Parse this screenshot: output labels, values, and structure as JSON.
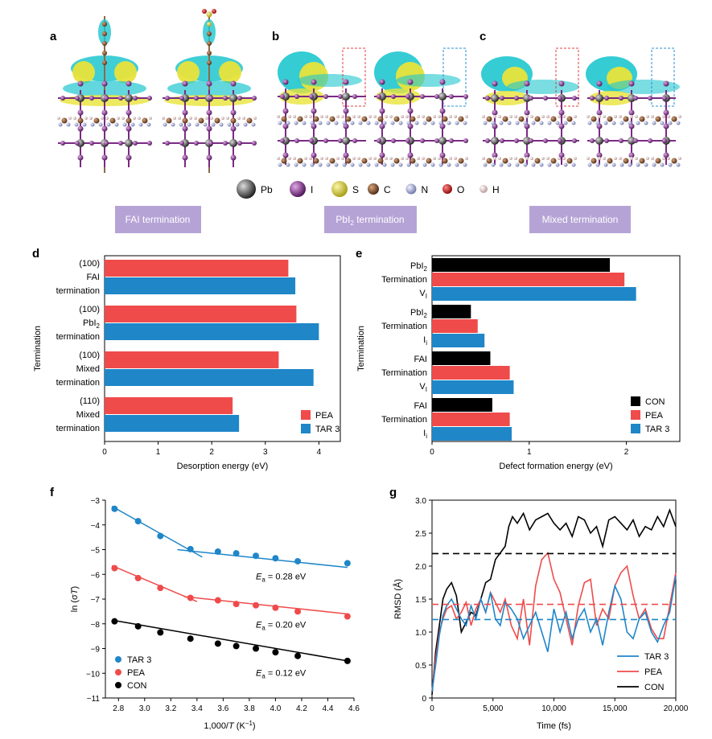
{
  "colors": {
    "pea": "#ef4b4b",
    "tar3": "#1f86c8",
    "con": "#000000",
    "terminationBox": "#b6a3d6",
    "Pb": "#555555",
    "I": "#7b2a84",
    "S": "#dbd23a",
    "C": "#7a4a2a",
    "N": "#9aa0c8",
    "O": "#d01010",
    "H": "#d8b8b8"
  },
  "panels": {
    "a": "a",
    "b": "b",
    "c": "c",
    "d": "d",
    "e": "e",
    "f": "f",
    "g": "g"
  },
  "legend_atoms": [
    {
      "symbol": "Pb",
      "color": "#555555"
    },
    {
      "symbol": "I",
      "color": "#7b2a84"
    },
    {
      "symbol": "S",
      "color": "#dbd23a"
    },
    {
      "symbol": "C",
      "color": "#7a4a2a"
    },
    {
      "symbol": "N",
      "color": "#9aa0c8"
    },
    {
      "symbol": "O",
      "color": "#d01010"
    },
    {
      "symbol": "H",
      "color": "#d8b8b8"
    }
  ],
  "termination_labels": {
    "a": "FAI termination",
    "b_pre": "PbI",
    "b_sub": "2",
    "b_post": " termination",
    "c": "Mixed termination"
  },
  "chart_data": [
    {
      "panel": "d",
      "type": "bar",
      "orientation": "horizontal",
      "ylabel": "Termination",
      "xlabel": "Desorption energy (eV)",
      "xlim": [
        0,
        4.4
      ],
      "xticks": [
        "0",
        "1",
        "2",
        "3",
        "4"
      ],
      "groups": [
        {
          "lines": [
            "(100)",
            "FAI",
            "termination"
          ]
        },
        {
          "lines": [
            "(100)",
            "PbI|2",
            "termination"
          ]
        },
        {
          "lines": [
            "(100)",
            "Mixed",
            "termination"
          ]
        },
        {
          "lines": [
            "(110)",
            "Mixed",
            "termination"
          ]
        }
      ],
      "series": [
        {
          "name": "PEA",
          "color": "#ef4b4b",
          "values": [
            3.43,
            3.58,
            3.25,
            2.39
          ]
        },
        {
          "name": "TAR 3",
          "color": "#1f86c8",
          "values": [
            3.56,
            4.0,
            3.9,
            2.51
          ]
        }
      ]
    },
    {
      "panel": "e",
      "type": "bar",
      "orientation": "horizontal",
      "ylabel": "Termination",
      "xlabel": "Defect formation energy (eV)",
      "xlim": [
        0,
        2.55
      ],
      "xticks": [
        "0",
        "1",
        "2"
      ],
      "groups": [
        {
          "lines": [
            "PbI|2",
            "Termination",
            "V|I"
          ]
        },
        {
          "lines": [
            "PbI|2",
            "Termination",
            "I|i"
          ]
        },
        {
          "lines": [
            "FAI",
            "Termination",
            "V|I"
          ]
        },
        {
          "lines": [
            "FAI",
            "Termination",
            "I|i"
          ]
        }
      ],
      "series": [
        {
          "name": "CON",
          "color": "#000000",
          "values": [
            1.83,
            0.4,
            0.6,
            0.62
          ]
        },
        {
          "name": "PEA",
          "color": "#ef4b4b",
          "values": [
            1.98,
            0.47,
            0.8,
            0.8
          ]
        },
        {
          "name": "TAR 3",
          "color": "#1f86c8",
          "values": [
            2.1,
            0.54,
            0.84,
            0.82
          ]
        }
      ]
    },
    {
      "panel": "f",
      "type": "scatter",
      "xlabel_pre": "1,000/",
      "xlabel_T": "T",
      "xlabel_post": " (K",
      "xlabel_sup": "−1",
      "xlabel_end": ")",
      "ylabel_pre": "ln (σ",
      "ylabel_T": "T",
      "ylabel_post": ")",
      "xlim": [
        2.7,
        4.6
      ],
      "ylim": [
        -11,
        -3
      ],
      "xticks": [
        "2.8",
        "3.0",
        "3.2",
        "3.4",
        "3.6",
        "3.8",
        "4.0",
        "4.2",
        "4.4",
        "4.6"
      ],
      "yticks": [
        "−3",
        "−4",
        "−5",
        "−6",
        "−7",
        "−8",
        "−9",
        "−10",
        "−11"
      ],
      "x": [
        2.77,
        2.95,
        3.12,
        3.35,
        3.56,
        3.7,
        3.85,
        4.0,
        4.17,
        4.55
      ],
      "series": [
        {
          "name": "TAR 3",
          "color": "#1f86c8",
          "values": [
            -3.35,
            -3.85,
            -4.45,
            -4.98,
            -5.08,
            -5.15,
            -5.25,
            -5.35,
            -5.47,
            -5.55
          ],
          "fits": [
            [
              [
                2.75,
                -3.25
              ],
              [
                3.44,
                -5.3
              ]
            ],
            [
              [
                3.25,
                -5.0
              ],
              [
                4.55,
                -5.72
              ]
            ]
          ]
        },
        {
          "name": "PEA",
          "color": "#ef4b4b",
          "values": [
            -5.75,
            -6.15,
            -6.55,
            -6.95,
            -7.05,
            -7.2,
            -7.25,
            -7.35,
            -7.5,
            -7.7
          ],
          "fits": [
            [
              [
                2.75,
                -5.65
              ],
              [
                3.4,
                -7.1
              ]
            ],
            [
              [
                3.3,
                -6.9
              ],
              [
                4.55,
                -7.6
              ]
            ]
          ]
        },
        {
          "name": "CON",
          "color": "#000000",
          "values": [
            -7.9,
            -8.1,
            -8.35,
            -8.6,
            -8.8,
            -8.9,
            -9.0,
            -9.15,
            -9.3,
            -9.5
          ],
          "fits": [
            [
              [
                2.75,
                -7.85
              ],
              [
                4.55,
                -9.5
              ]
            ]
          ]
        }
      ],
      "annotations": [
        {
          "pre": "E",
          "sub": "a",
          "post": " = 0.28 eV",
          "x": 3.85,
          "y": -6.2
        },
        {
          "pre": "E",
          "sub": "a",
          "post": " = 0.20 eV",
          "x": 3.85,
          "y": -8.15
        },
        {
          "pre": "E",
          "sub": "a",
          "post": " = 0.12 eV",
          "x": 3.85,
          "y": -10.1
        }
      ],
      "legend": [
        "TAR 3",
        "PEA",
        "CON"
      ]
    },
    {
      "panel": "g",
      "type": "line",
      "xlabel": "Time (fs)",
      "ylabel": "RMSD (Å)",
      "xlim": [
        0,
        20000
      ],
      "ylim": [
        0,
        3.0
      ],
      "xticks": [
        "0",
        "5,000",
        "10,000",
        "15,000",
        "20,000"
      ],
      "yticks": [
        "0",
        "0.5",
        "1.0",
        "1.5",
        "2.0",
        "2.5",
        "3.0"
      ],
      "means": [
        {
          "name": "CON",
          "value": 2.19
        },
        {
          "name": "PEA",
          "value": 1.42
        },
        {
          "name": "TAR 3",
          "value": 1.19
        }
      ],
      "series": [
        {
          "name": "CON",
          "color": "#000000",
          "x": [
            0,
            300,
            600,
            900,
            1200,
            1600,
            2000,
            2400,
            2800,
            3200,
            3600,
            4000,
            4400,
            4800,
            5200,
            5600,
            6000,
            6300,
            6600,
            7000,
            7500,
            8000,
            8500,
            9000,
            9500,
            10000,
            10500,
            11000,
            11500,
            12000,
            12500,
            13000,
            13500,
            14000,
            14500,
            15000,
            15500,
            16000,
            16500,
            17000,
            17500,
            18000,
            18500,
            19000,
            19500,
            20000
          ],
          "values": [
            0.05,
            0.7,
            1.1,
            1.5,
            1.65,
            1.75,
            1.55,
            1.0,
            1.15,
            1.3,
            1.25,
            1.5,
            1.75,
            1.8,
            2.1,
            2.2,
            2.3,
            2.6,
            2.75,
            2.65,
            2.8,
            2.55,
            2.7,
            2.75,
            2.8,
            2.65,
            2.55,
            2.65,
            2.45,
            2.75,
            2.7,
            2.5,
            2.6,
            2.3,
            2.7,
            2.75,
            2.65,
            2.55,
            2.7,
            2.45,
            2.6,
            2.55,
            2.75,
            2.6,
            2.85,
            2.6
          ]
        },
        {
          "name": "PEA",
          "color": "#ef4b4b",
          "x": [
            0,
            300,
            600,
            900,
            1200,
            1600,
            2000,
            2400,
            2800,
            3200,
            3600,
            4000,
            4400,
            4800,
            5200,
            5600,
            6000,
            6500,
            7000,
            7500,
            8000,
            8500,
            9000,
            9500,
            10000,
            10500,
            11000,
            11500,
            12000,
            12500,
            13000,
            13500,
            14000,
            14500,
            15000,
            15500,
            16000,
            16500,
            17000,
            17500,
            18000,
            18500,
            19000,
            19500,
            20000
          ],
          "values": [
            0.1,
            0.6,
            1.0,
            1.2,
            1.35,
            1.4,
            1.2,
            1.3,
            1.45,
            1.1,
            1.35,
            1.5,
            1.3,
            1.6,
            1.45,
            1.3,
            1.5,
            1.1,
            0.9,
            1.5,
            0.8,
            1.7,
            2.1,
            2.2,
            1.8,
            1.6,
            1.2,
            0.8,
            1.4,
            1.75,
            1.8,
            1.1,
            1.35,
            1.2,
            1.7,
            1.9,
            2.0,
            1.55,
            1.2,
            1.35,
            1.05,
            0.9,
            0.9,
            1.4,
            1.9
          ]
        },
        {
          "name": "TAR 3",
          "color": "#1f86c8",
          "x": [
            0,
            300,
            600,
            900,
            1200,
            1600,
            2000,
            2400,
            2800,
            3200,
            3600,
            4000,
            4400,
            4800,
            5200,
            5600,
            6000,
            6500,
            7000,
            7500,
            8000,
            8500,
            9000,
            9500,
            10000,
            10500,
            11000,
            11500,
            12000,
            12500,
            13000,
            13500,
            14000,
            14500,
            15000,
            15500,
            16000,
            16500,
            17000,
            17500,
            18000,
            18500,
            19000,
            19500,
            20000
          ],
          "values": [
            0.1,
            0.5,
            0.95,
            1.25,
            1.4,
            1.5,
            1.35,
            1.2,
            1.1,
            1.4,
            1.2,
            1.5,
            1.3,
            1.6,
            1.2,
            1.1,
            1.45,
            1.35,
            1.2,
            0.9,
            1.1,
            1.3,
            1.0,
            0.7,
            1.35,
            1.0,
            1.3,
            0.9,
            1.2,
            1.35,
            1.0,
            1.2,
            0.8,
            1.3,
            1.7,
            1.5,
            1.0,
            0.9,
            1.2,
            1.3,
            1.0,
            0.85,
            1.1,
            1.3,
            1.85
          ]
        }
      ],
      "legend": [
        "TAR 3",
        "PEA",
        "CON"
      ]
    }
  ]
}
